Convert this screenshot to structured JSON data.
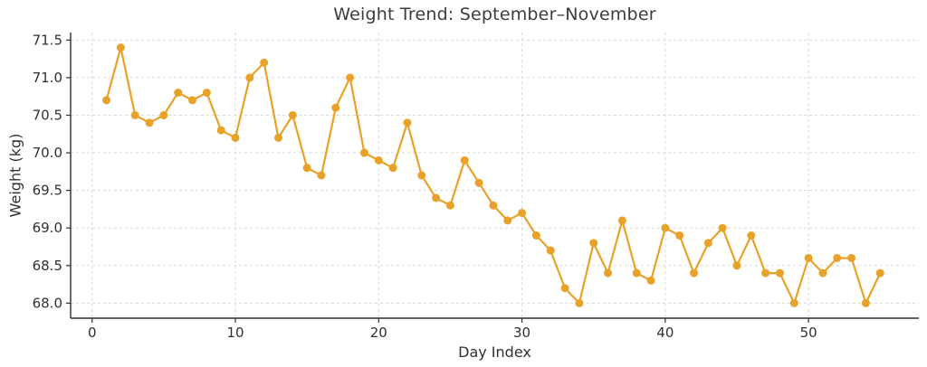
{
  "chart_data": {
    "type": "line",
    "title": "Weight Trend: September–November",
    "xlabel": "Day Index",
    "ylabel": "Weight (kg)",
    "series_name": "weight",
    "x": [
      1,
      2,
      3,
      4,
      5,
      6,
      7,
      8,
      9,
      10,
      11,
      12,
      13,
      14,
      15,
      16,
      17,
      18,
      19,
      20,
      21,
      22,
      23,
      24,
      25,
      26,
      27,
      28,
      29,
      30,
      31,
      32,
      33,
      34,
      35,
      36,
      37,
      38,
      39,
      40,
      41,
      42,
      43,
      44,
      45,
      46,
      47,
      48,
      49,
      50,
      51,
      52,
      53,
      54,
      55
    ],
    "values": [
      70.7,
      71.4,
      70.5,
      70.4,
      70.5,
      70.8,
      70.7,
      70.8,
      70.3,
      70.2,
      71.0,
      71.2,
      70.2,
      70.5,
      69.8,
      69.7,
      70.6,
      71.0,
      70.0,
      69.9,
      69.8,
      70.4,
      69.7,
      69.4,
      69.3,
      69.9,
      69.6,
      69.3,
      69.1,
      69.2,
      68.9,
      68.7,
      68.2,
      68.0,
      68.8,
      68.4,
      69.1,
      68.4,
      68.3,
      69.0,
      68.9,
      68.4,
      68.8,
      69.0,
      68.5,
      68.9,
      68.4,
      68.4,
      68.0,
      68.6,
      68.4,
      68.6,
      68.6,
      68.0,
      68.4
    ],
    "xticks": [
      0,
      10,
      20,
      30,
      40,
      50
    ],
    "yticks": [
      68.0,
      68.5,
      69.0,
      69.5,
      70.0,
      70.5,
      71.0,
      71.5
    ],
    "xlim": [
      -1.5,
      57.7
    ],
    "ylim": [
      67.8,
      71.6
    ],
    "grid": true,
    "grid_style": "dashed",
    "legend": "none",
    "marker": "circle",
    "colors": {
      "line": "#E9A229",
      "marker": "#E9A229",
      "grid": "#D9D9D9",
      "spine": "#2E2E2E",
      "tick_text": "#303030",
      "title_text": "#3C3C3C",
      "background": "#FFFFFF"
    }
  }
}
